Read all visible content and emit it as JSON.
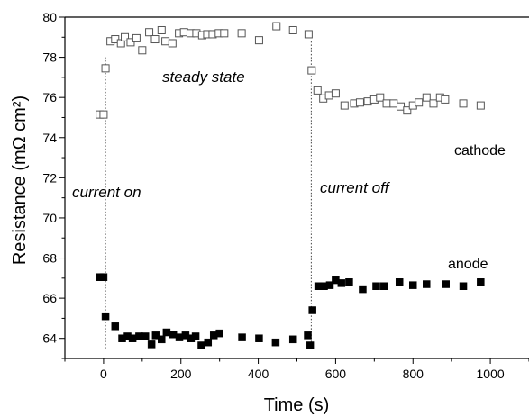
{
  "chart_data": {
    "type": "scatter",
    "xlabel": "Time (s)",
    "ylabel": "Resistance (mΩ cm²)",
    "xlim": [
      -100,
      1100
    ],
    "ylim": [
      63,
      80
    ],
    "x_ticks": [
      0,
      200,
      400,
      600,
      800,
      1000
    ],
    "y_ticks": [
      64,
      66,
      68,
      70,
      72,
      74,
      76,
      78,
      80
    ],
    "x_tick_labels": [
      "0",
      "200",
      "400",
      "600",
      "800",
      "1000"
    ],
    "y_tick_labels": [
      "64",
      "66",
      "68",
      "70",
      "72",
      "74",
      "76",
      "78",
      "80"
    ],
    "x_minor_step": 100,
    "y_minor_step": 1,
    "grid": false,
    "series": [
      {
        "name": "cathode",
        "marker": "open-square",
        "color": "#555555",
        "points": [
          [
            -10,
            75.15
          ],
          [
            0,
            75.15
          ],
          [
            5,
            77.45
          ],
          [
            18,
            78.8
          ],
          [
            30,
            78.9
          ],
          [
            45,
            78.7
          ],
          [
            55,
            79.0
          ],
          [
            70,
            78.75
          ],
          [
            85,
            78.95
          ],
          [
            100,
            78.35
          ],
          [
            118,
            79.25
          ],
          [
            133,
            78.9
          ],
          [
            150,
            79.35
          ],
          [
            160,
            78.8
          ],
          [
            178,
            78.7
          ],
          [
            195,
            79.2
          ],
          [
            208,
            79.25
          ],
          [
            225,
            79.2
          ],
          [
            240,
            79.2
          ],
          [
            255,
            79.1
          ],
          [
            268,
            79.15
          ],
          [
            282,
            79.15
          ],
          [
            298,
            79.2
          ],
          [
            312,
            79.2
          ],
          [
            357,
            79.2
          ],
          [
            402,
            78.85
          ],
          [
            447,
            79.55
          ],
          [
            490,
            79.35
          ],
          [
            530,
            79.15
          ],
          [
            538,
            77.35
          ],
          [
            553,
            76.35
          ],
          [
            568,
            75.95
          ],
          [
            583,
            76.1
          ],
          [
            600,
            76.2
          ],
          [
            623,
            75.6
          ],
          [
            648,
            75.7
          ],
          [
            663,
            75.75
          ],
          [
            683,
            75.8
          ],
          [
            700,
            75.9
          ],
          [
            715,
            76.0
          ],
          [
            732,
            75.7
          ],
          [
            750,
            75.7
          ],
          [
            768,
            75.55
          ],
          [
            785,
            75.35
          ],
          [
            800,
            75.6
          ],
          [
            815,
            75.75
          ],
          [
            835,
            76.0
          ],
          [
            853,
            75.7
          ],
          [
            870,
            76.0
          ],
          [
            883,
            75.9
          ],
          [
            930,
            75.7
          ],
          [
            975,
            75.6
          ]
        ]
      },
      {
        "name": "anode",
        "marker": "filled-square",
        "color": "#000000",
        "points": [
          [
            -10,
            67.05
          ],
          [
            0,
            67.05
          ],
          [
            5,
            65.1
          ],
          [
            30,
            64.6
          ],
          [
            48,
            64.0
          ],
          [
            62,
            64.1
          ],
          [
            75,
            64.0
          ],
          [
            92,
            64.1
          ],
          [
            108,
            64.1
          ],
          [
            124,
            63.7
          ],
          [
            135,
            64.15
          ],
          [
            150,
            63.95
          ],
          [
            163,
            64.3
          ],
          [
            180,
            64.2
          ],
          [
            196,
            64.05
          ],
          [
            212,
            64.15
          ],
          [
            226,
            64.0
          ],
          [
            238,
            64.1
          ],
          [
            253,
            63.65
          ],
          [
            270,
            63.8
          ],
          [
            285,
            64.15
          ],
          [
            300,
            64.25
          ],
          [
            358,
            64.05
          ],
          [
            402,
            64.0
          ],
          [
            445,
            63.8
          ],
          [
            490,
            63.95
          ],
          [
            528,
            64.15
          ],
          [
            534,
            63.65
          ],
          [
            540,
            65.4
          ],
          [
            555,
            66.6
          ],
          [
            570,
            66.6
          ],
          [
            585,
            66.65
          ],
          [
            600,
            66.9
          ],
          [
            615,
            66.75
          ],
          [
            635,
            66.8
          ],
          [
            670,
            66.45
          ],
          [
            705,
            66.6
          ],
          [
            725,
            66.6
          ],
          [
            765,
            66.8
          ],
          [
            800,
            66.65
          ],
          [
            835,
            66.7
          ],
          [
            885,
            66.7
          ],
          [
            930,
            66.6
          ],
          [
            975,
            66.8
          ]
        ]
      }
    ],
    "annotations": {
      "steady_state": "steady state",
      "current_on": "current on",
      "current_off": "current off",
      "cathode_label": "cathode",
      "anode_label": "anode"
    },
    "vlines": [
      {
        "name": "current-on-line",
        "x": 5,
        "y_from": 63.5,
        "y_to": 78.0
      },
      {
        "name": "current-off-line",
        "x": 537,
        "y_from": 63.5,
        "y_to": 78.8
      }
    ]
  }
}
